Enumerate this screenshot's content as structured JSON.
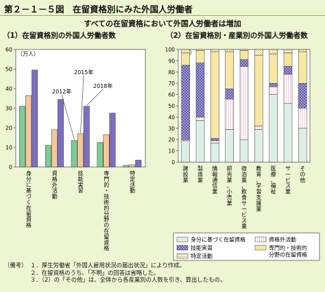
{
  "header": {
    "title": "第２－１－５図　在留資格別にみた外国人労働者"
  },
  "subtitle": "すべての在留資格において外国人労働者は増加",
  "left_panel_title": "（1）在留資格別の外国人労働者数",
  "right_panel_title": "（2）在留資格別・産業別の外国人労働者数",
  "chart_data": [
    {
      "type": "bar",
      "unit_label": "（万人）",
      "ylim": [
        0,
        60
      ],
      "yticks": [
        "0",
        "10",
        "20",
        "30",
        "40",
        "50",
        "60"
      ],
      "categories": [
        "身分に基づく在留資格",
        "資格外活動",
        "技能実習",
        "専門的・技術的分野の在留資格",
        "特定活動"
      ],
      "series": [
        {
          "name": "2012年",
          "color": "#7ecb93",
          "values": [
            31,
            11,
            13.5,
            12.5,
            0.8
          ]
        },
        {
          "name": "2015年",
          "color": "#f5c79a",
          "values": [
            36.5,
            19,
            17,
            16.5,
            1.1
          ]
        },
        {
          "name": "2018年",
          "color": "#7b6fc2",
          "values": [
            49.5,
            34.5,
            31,
            27.5,
            3.5
          ]
        }
      ],
      "annotations": [
        "2015年",
        "2012年",
        "2018年"
      ]
    },
    {
      "type": "bar",
      "stacked": true,
      "unit_label": "（%）",
      "ylim": [
        0,
        100
      ],
      "yticks": [
        "0",
        "10",
        "20",
        "30",
        "40",
        "50",
        "60",
        "70",
        "80",
        "90",
        "100"
      ],
      "categories": [
        "建設業",
        "製造業",
        "情報通信業",
        "卸売業、小売業",
        "宿泊業、飲食サービス業",
        "教育、学習支援業",
        "医療、福祉",
        "サービス業",
        "その他"
      ],
      "series": [
        {
          "name": "身分に基づく在留資格",
          "values": [
            19,
            37,
            17,
            29,
            20,
            29,
            60,
            52,
            30
          ]
        },
        {
          "name": "資格外活動",
          "values": [
            1,
            3,
            2,
            27,
            65,
            3,
            7,
            26,
            18
          ]
        },
        {
          "name": "技能実習",
          "values": [
            66,
            48,
            2,
            9,
            6,
            0,
            3,
            7,
            22
          ]
        },
        {
          "name": "専門的・技術的分野の在留資格",
          "values": [
            11,
            11,
            77,
            33,
            8,
            63,
            26,
            12,
            28
          ]
        },
        {
          "name": "特定活動",
          "values": [
            3,
            1,
            2,
            2,
            1,
            5,
            4,
            3,
            2
          ]
        }
      ]
    }
  ],
  "legend": {
    "items": [
      "身分に基づく在留資格",
      "資格外活動",
      "技能実習",
      "専門的・技術的分野の在留資格",
      "特定活動"
    ],
    "prof_line1": "専門的・技術的",
    "prof_line2": "分野の在留資格"
  },
  "notes": {
    "label": "（備考）",
    "items": [
      "１．厚生労働省「外国人雇用状況の届出状況」により作成。",
      "２．在留資格のうち、「不明」の回答は省略した。",
      "３．（2）の「その他」は、全体から各産業別の人数を引き、算出したもの。"
    ]
  }
}
